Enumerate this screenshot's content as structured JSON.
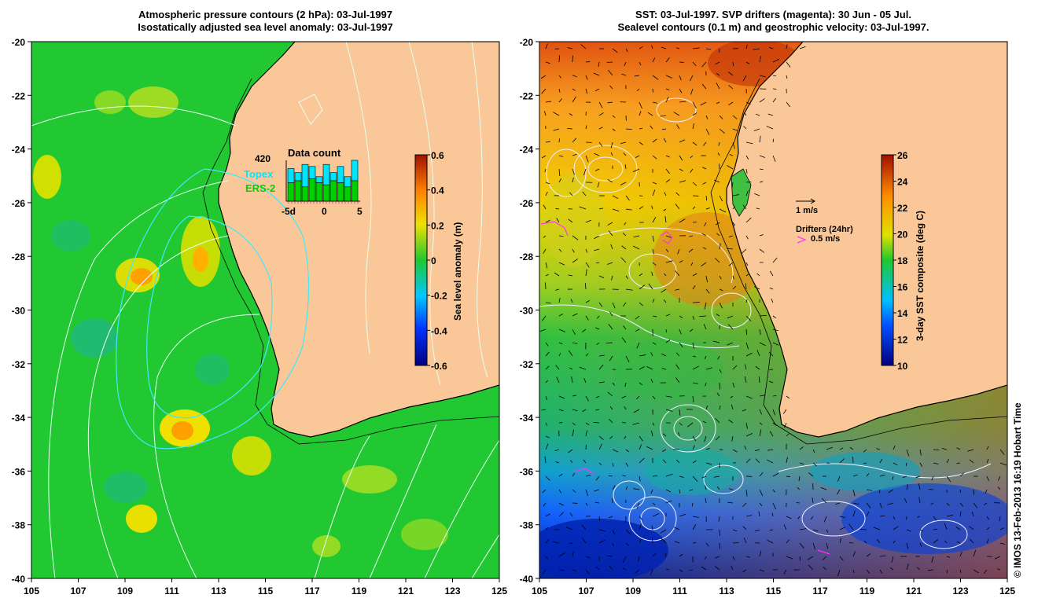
{
  "left_panel": {
    "title_line1": "Atmospheric pressure contours (2 hPa): 03-Jul-1997",
    "title_line2": "Isostatically adjusted sea level anomaly: 03-Jul-1997",
    "colorbar": {
      "label": "Sea level anomaly (m)",
      "ticks": [
        "0.6",
        "0.4",
        "0.2",
        "0",
        "-0.2",
        "-0.4",
        "-0.6"
      ]
    },
    "inset": {
      "title": "Data count",
      "max_label": "420",
      "series_labels": [
        "Topex",
        "ERS-2"
      ],
      "x_ticks": [
        "-5d",
        "0",
        "5"
      ],
      "topex_color": "#00e5ff",
      "ers2_color": "#00d000"
    }
  },
  "right_panel": {
    "title_line1": "SST: 03-Jul-1997. SVP drifters (magenta): 30 Jun - 05 Jul.",
    "title_line2": "Sealevel contours (0.1 m) and geostrophic velocity: 03-Jul-1997.",
    "colorbar": {
      "label": "3-day SST composite (deg C)",
      "ticks": [
        "26",
        "24",
        "22",
        "20",
        "18",
        "16",
        "14",
        "12",
        "10"
      ]
    },
    "velocity_scale_label": "1 m/s",
    "drifters_label": "Drifters (24hr)",
    "drifters_scale_label": "0.5 m/s",
    "drifter_color": "#ff30ff"
  },
  "axes": {
    "lon_ticks": [
      "105",
      "107",
      "109",
      "111",
      "113",
      "115",
      "117",
      "119",
      "121",
      "123",
      "125"
    ],
    "lat_ticks": [
      "-20",
      "-22",
      "-24",
      "-26",
      "-28",
      "-30",
      "-32",
      "-34",
      "-36",
      "-38",
      "-40"
    ],
    "lon_range": [
      105,
      125
    ],
    "lat_range": [
      -40,
      -20
    ]
  },
  "colors": {
    "land": "#fac898",
    "ocean_left": "#22c832",
    "coast": "#000000"
  },
  "credit": "© IMOS 13-Feb-2013 16:19 Hobart Time"
}
